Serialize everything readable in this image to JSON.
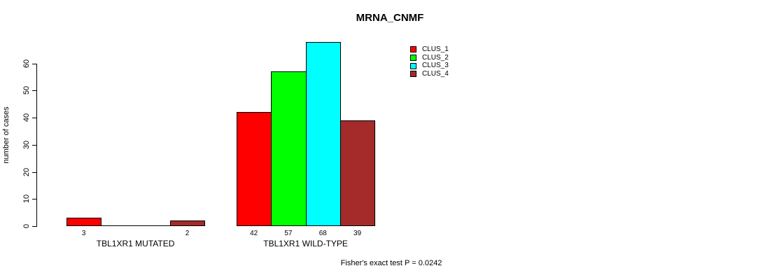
{
  "chart_data": {
    "type": "bar",
    "title": "MRNA_CNMF",
    "ylabel": "number of cases",
    "xlabel": "",
    "yticks": [
      0,
      10,
      20,
      30,
      40,
      50,
      60
    ],
    "ylim": [
      0,
      68
    ],
    "grid": false,
    "legend_position": "top-right",
    "categories": [
      "TBL1XR1 MUTATED",
      "TBL1XR1 WILD-TYPE"
    ],
    "series": [
      {
        "name": "CLUS_1",
        "color": "#ff0000",
        "values": [
          3,
          42
        ]
      },
      {
        "name": "CLUS_2",
        "color": "#00ff00",
        "values": [
          0,
          57
        ]
      },
      {
        "name": "CLUS_3",
        "color": "#00ffff",
        "values": [
          0,
          68
        ]
      },
      {
        "name": "CLUS_4",
        "color": "#a52a2a",
        "values": [
          2,
          39
        ]
      }
    ],
    "bar_value_labels": [
      [
        "3",
        "",
        "",
        "2"
      ],
      [
        "42",
        "57",
        "68",
        "39"
      ]
    ],
    "annotation": "Fisher's exact test P = 0.0242"
  }
}
